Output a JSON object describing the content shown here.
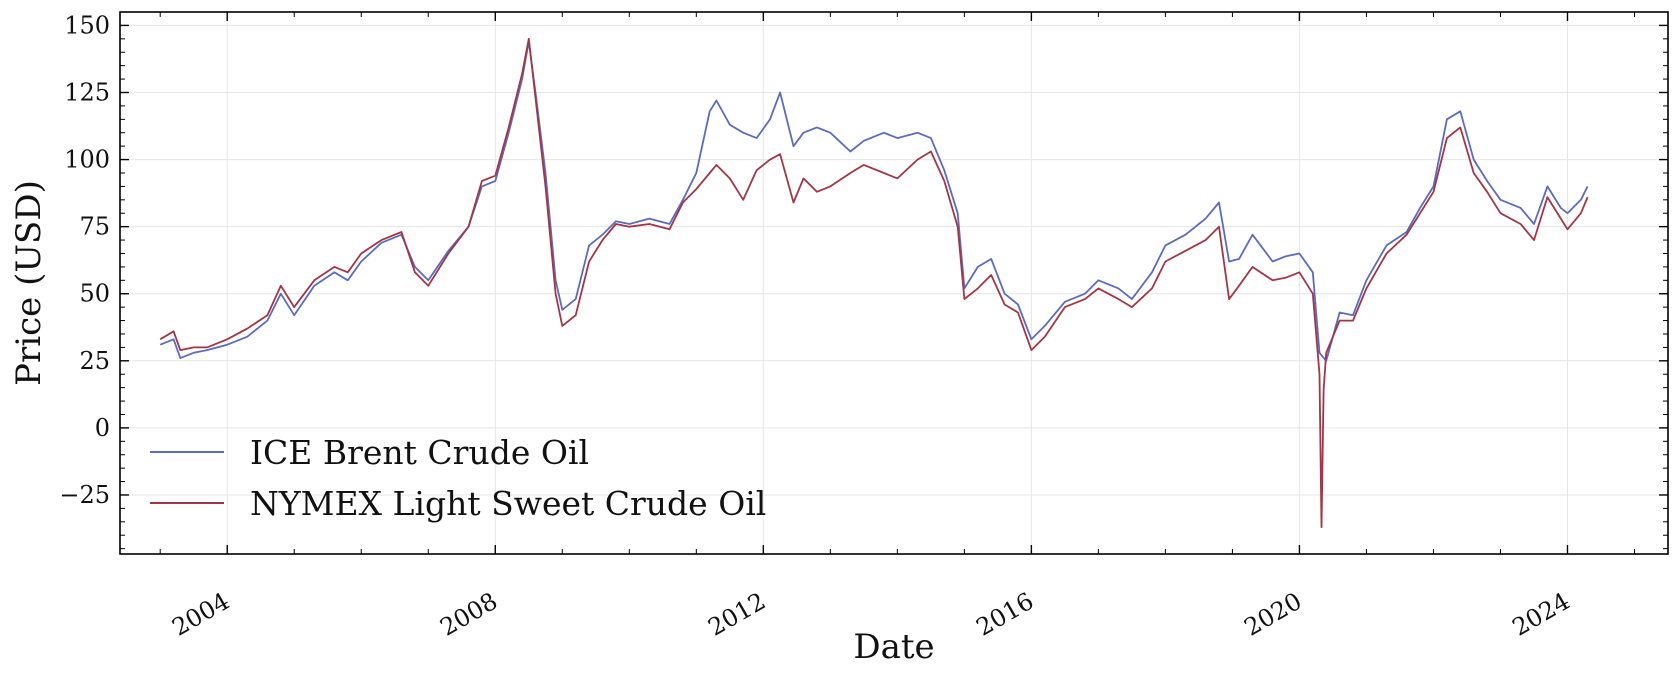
{
  "chart_data": {
    "type": "line",
    "title": "",
    "xlabel": "Date",
    "ylabel": "Price (USD)",
    "xlim": [
      2002.4,
      2025.5
    ],
    "ylim": [
      -47,
      155
    ],
    "x_ticks": [
      2004,
      2008,
      2012,
      2016,
      2020,
      2024
    ],
    "x_tick_labels": [
      "2004",
      "2008",
      "2012",
      "2016",
      "2020",
      "2024"
    ],
    "y_ticks": [
      -25,
      0,
      25,
      50,
      75,
      100,
      125,
      150
    ],
    "y_tick_labels": [
      "−25",
      "0",
      "25",
      "50",
      "75",
      "100",
      "125",
      "150"
    ],
    "grid": true,
    "legend_position": "lower-left",
    "series": [
      {
        "name": "ICE Brent Crude Oil",
        "color": "#5b6bbf",
        "x": [
          2003.0,
          2003.2,
          2003.3,
          2003.5,
          2003.7,
          2004.0,
          2004.3,
          2004.6,
          2004.8,
          2005.0,
          2005.3,
          2005.6,
          2005.8,
          2006.0,
          2006.3,
          2006.6,
          2006.8,
          2007.0,
          2007.3,
          2007.6,
          2007.8,
          2008.0,
          2008.2,
          2008.4,
          2008.5,
          2008.6,
          2008.75,
          2008.9,
          2009.0,
          2009.2,
          2009.4,
          2009.6,
          2009.8,
          2010.0,
          2010.3,
          2010.6,
          2010.8,
          2011.0,
          2011.2,
          2011.3,
          2011.5,
          2011.7,
          2011.9,
          2012.1,
          2012.25,
          2012.45,
          2012.6,
          2012.8,
          2013.0,
          2013.3,
          2013.5,
          2013.8,
          2014.0,
          2014.3,
          2014.5,
          2014.7,
          2014.9,
          2015.0,
          2015.2,
          2015.4,
          2015.6,
          2015.8,
          2016.0,
          2016.2,
          2016.5,
          2016.8,
          2017.0,
          2017.3,
          2017.5,
          2017.8,
          2018.0,
          2018.3,
          2018.6,
          2018.8,
          2018.95,
          2019.1,
          2019.3,
          2019.6,
          2019.8,
          2020.0,
          2020.2,
          2020.3,
          2020.4,
          2020.6,
          2020.8,
          2021.0,
          2021.3,
          2021.6,
          2021.8,
          2022.0,
          2022.2,
          2022.4,
          2022.6,
          2022.8,
          2023.0,
          2023.3,
          2023.5,
          2023.7,
          2023.9,
          2024.0,
          2024.2,
          2024.3
        ],
        "values": [
          31,
          33,
          26,
          28,
          29,
          31,
          34,
          40,
          50,
          42,
          53,
          58,
          55,
          62,
          69,
          72,
          60,
          55,
          66,
          75,
          90,
          92,
          110,
          130,
          144,
          125,
          95,
          55,
          44,
          48,
          68,
          72,
          77,
          76,
          78,
          76,
          85,
          95,
          118,
          122,
          113,
          110,
          108,
          115,
          125,
          105,
          110,
          112,
          110,
          103,
          107,
          110,
          108,
          110,
          108,
          96,
          80,
          52,
          60,
          63,
          50,
          46,
          33,
          38,
          47,
          50,
          55,
          52,
          48,
          58,
          68,
          72,
          78,
          84,
          62,
          63,
          72,
          62,
          64,
          65,
          58,
          28,
          25,
          43,
          42,
          55,
          68,
          73,
          82,
          90,
          115,
          118,
          100,
          92,
          85,
          82,
          76,
          90,
          82,
          80,
          85,
          90
        ]
      },
      {
        "name": "NYMEX Light Sweet Crude Oil",
        "color": "#a33547",
        "x": [
          2003.0,
          2003.2,
          2003.3,
          2003.5,
          2003.7,
          2004.0,
          2004.3,
          2004.6,
          2004.8,
          2005.0,
          2005.3,
          2005.6,
          2005.8,
          2006.0,
          2006.3,
          2006.6,
          2006.8,
          2007.0,
          2007.3,
          2007.6,
          2007.8,
          2008.0,
          2008.2,
          2008.4,
          2008.5,
          2008.6,
          2008.75,
          2008.9,
          2009.0,
          2009.2,
          2009.4,
          2009.6,
          2009.8,
          2010.0,
          2010.3,
          2010.6,
          2010.8,
          2011.0,
          2011.2,
          2011.3,
          2011.5,
          2011.7,
          2011.9,
          2012.1,
          2012.25,
          2012.45,
          2012.6,
          2012.8,
          2013.0,
          2013.3,
          2013.5,
          2013.8,
          2014.0,
          2014.3,
          2014.5,
          2014.7,
          2014.9,
          2015.0,
          2015.2,
          2015.4,
          2015.6,
          2015.8,
          2016.0,
          2016.2,
          2016.5,
          2016.8,
          2017.0,
          2017.3,
          2017.5,
          2017.8,
          2018.0,
          2018.3,
          2018.6,
          2018.8,
          2018.95,
          2019.1,
          2019.3,
          2019.6,
          2019.8,
          2020.0,
          2020.2,
          2020.3,
          2020.33,
          2020.36,
          2020.4,
          2020.6,
          2020.8,
          2021.0,
          2021.3,
          2021.6,
          2021.8,
          2022.0,
          2022.2,
          2022.4,
          2022.6,
          2022.8,
          2023.0,
          2023.3,
          2023.5,
          2023.7,
          2023.9,
          2024.0,
          2024.2,
          2024.3
        ],
        "values": [
          33,
          36,
          29,
          30,
          30,
          33,
          37,
          42,
          53,
          45,
          55,
          60,
          58,
          65,
          70,
          73,
          58,
          53,
          65,
          75,
          92,
          94,
          112,
          132,
          145,
          123,
          90,
          50,
          38,
          42,
          62,
          70,
          76,
          75,
          76,
          74,
          84,
          89,
          95,
          98,
          93,
          85,
          96,
          100,
          102,
          84,
          93,
          88,
          90,
          95,
          98,
          95,
          93,
          100,
          103,
          92,
          75,
          48,
          52,
          57,
          46,
          43,
          29,
          34,
          45,
          48,
          52,
          48,
          45,
          52,
          62,
          66,
          70,
          75,
          48,
          53,
          60,
          55,
          56,
          58,
          50,
          20,
          -37,
          14,
          28,
          40,
          40,
          52,
          65,
          72,
          80,
          88,
          108,
          112,
          95,
          88,
          80,
          76,
          70,
          86,
          78,
          74,
          80,
          86
        ]
      }
    ]
  }
}
